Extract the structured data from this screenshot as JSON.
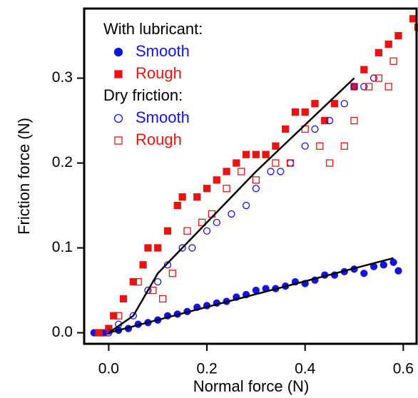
{
  "chart_data": {
    "type": "scatter",
    "x_label": "Normal force (N)",
    "y_label": "Friction force (N)",
    "xlim": [
      -0.05,
      0.63
    ],
    "ylim": [
      -0.013,
      0.382
    ],
    "xticks": [
      {
        "value": 0,
        "label": "0.0"
      },
      0.2,
      0.4,
      0.6
    ],
    "yticks": [
      {
        "value": 0,
        "label": "0.0"
      },
      0.1,
      0.2,
      0.3
    ],
    "legend": "upper left",
    "series": [
      {
        "group": "With lubricant:",
        "name": "Smooth",
        "color": "#1414e0",
        "marker": "circle",
        "filled": true,
        "x": [
          -0.03,
          -0.01,
          0.0,
          0.02,
          0.04,
          0.06,
          0.08,
          0.1,
          0.12,
          0.14,
          0.16,
          0.18,
          0.2,
          0.22,
          0.24,
          0.26,
          0.28,
          0.3,
          0.32,
          0.34,
          0.36,
          0.38,
          0.4,
          0.42,
          0.44,
          0.46,
          0.48,
          0.5,
          0.52,
          0.54,
          0.56,
          0.58,
          0.59
        ],
        "values": [
          0,
          0,
          0.002,
          0.003,
          0.005,
          0.01,
          0.012,
          0.015,
          0.02,
          0.022,
          0.025,
          0.03,
          0.032,
          0.035,
          0.037,
          0.042,
          0.045,
          0.05,
          0.052,
          0.052,
          0.055,
          0.06,
          0.058,
          0.062,
          0.068,
          0.068,
          0.072,
          0.075,
          0.07,
          0.078,
          0.08,
          0.083,
          0.073
        ]
      },
      {
        "group": "With lubricant:",
        "name": "Rough",
        "color": "#e81414",
        "marker": "square",
        "filled": true,
        "x": [
          -0.02,
          0.0,
          0.01,
          0.03,
          0.05,
          0.07,
          0.08,
          0.1,
          0.12,
          0.14,
          0.15,
          0.18,
          0.2,
          0.22,
          0.24,
          0.26,
          0.28,
          0.3,
          0.32,
          0.34,
          0.36,
          0.38,
          0.4,
          0.42,
          0.44,
          0.46,
          0.5,
          0.52,
          0.55,
          0.57,
          0.59,
          0.62,
          0.63
        ],
        "values": [
          0,
          0.005,
          0.02,
          0.04,
          0.06,
          0.08,
          0.1,
          0.1,
          0.12,
          0.15,
          0.16,
          0.16,
          0.17,
          0.18,
          0.19,
          0.2,
          0.21,
          0.21,
          0.21,
          0.22,
          0.24,
          0.26,
          0.26,
          0.27,
          0.25,
          0.27,
          0.29,
          0.31,
          0.33,
          0.34,
          0.35,
          0.37,
          0.36
        ]
      },
      {
        "group": "Dry friction:",
        "name": "Smooth",
        "color": "#1414e0",
        "marker": "circle",
        "filled": false,
        "x": [
          0.0,
          0.02,
          0.05,
          0.08,
          0.1,
          0.12,
          0.15,
          0.17,
          0.2,
          0.22,
          0.25,
          0.28,
          0.3,
          0.33,
          0.35,
          0.37,
          0.4,
          0.42,
          0.45,
          0.48,
          0.5,
          0.52,
          0.54
        ],
        "values": [
          0.0,
          0.01,
          0.02,
          0.05,
          0.06,
          0.08,
          0.1,
          0.1,
          0.12,
          0.13,
          0.14,
          0.15,
          0.17,
          0.19,
          0.19,
          0.2,
          0.22,
          0.24,
          0.25,
          0.27,
          0.29,
          0.29,
          0.3
        ]
      },
      {
        "group": "Dry friction:",
        "name": "Rough",
        "color": "#e81414",
        "marker": "square",
        "filled": false,
        "x": [
          -0.01,
          0.02,
          0.06,
          0.09,
          0.11,
          0.13,
          0.16,
          0.19,
          0.21,
          0.24,
          0.27,
          0.3,
          0.34,
          0.37,
          0.4,
          0.43,
          0.45,
          0.48,
          0.5,
          0.53,
          0.55,
          0.57,
          0.58
        ],
        "values": [
          0.0,
          0.02,
          0.06,
          0.05,
          0.04,
          0.07,
          0.12,
          0.13,
          0.14,
          0.17,
          0.19,
          0.18,
          0.2,
          0.2,
          0.24,
          0.22,
          0.2,
          0.22,
          0.25,
          0.29,
          0.3,
          0.29,
          0.32
        ]
      }
    ],
    "fit_lines": [
      {
        "color": "#000000",
        "x": [
          0.0,
          0.58
        ],
        "values": [
          0.0,
          0.088
        ]
      },
      {
        "color": "#000000",
        "x": [
          0.0,
          0.05,
          0.1,
          0.15,
          0.3,
          0.5
        ],
        "values": [
          0.0,
          0.02,
          0.07,
          0.1,
          0.19,
          0.3
        ]
      }
    ]
  }
}
